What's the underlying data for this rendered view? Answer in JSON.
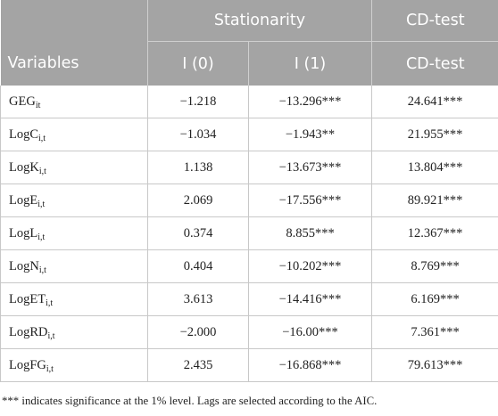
{
  "header": {
    "group_stationarity": "Stationarity",
    "group_cd": "CD-test",
    "col_variables": "Variables",
    "col_i0": "I (0)",
    "col_i1": "I (1)",
    "col_cd": "CD-test"
  },
  "rows": [
    {
      "var": "GEG",
      "sub": "it",
      "i0": "−1.218",
      "i1": "−13.296***",
      "cd": "24.641***"
    },
    {
      "var": "LogC",
      "sub": "i,t",
      "i0": "−1.034",
      "i1": "−1.943**",
      "cd": "21.955***"
    },
    {
      "var": "LogK",
      "sub": "i,t",
      "i0": "1.138",
      "i1": "−13.673***",
      "cd": "13.804***"
    },
    {
      "var": "LogE",
      "sub": "i,t",
      "i0": "2.069",
      "i1": "−17.556***",
      "cd": "89.921***"
    },
    {
      "var": "LogL",
      "sub": "i,t",
      "i0": "0.374",
      "i1": "8.855***",
      "cd": "12.367***"
    },
    {
      "var": "LogN",
      "sub": "i,t",
      "i0": "0.404",
      "i1": "−10.202***",
      "cd": "8.769***"
    },
    {
      "var": "LogET",
      "sub": "i,t",
      "i0": "3.613",
      "i1": "−14.416***",
      "cd": "6.169***"
    },
    {
      "var": "LogRD",
      "sub": "i,t",
      "i0": "−2.000",
      "i1": "−16.00***",
      "cd": "7.361***"
    },
    {
      "var": "LogFG",
      "sub": "i,t",
      "i0": "2.435",
      "i1": "−16.868***",
      "cd": "79.613***"
    }
  ],
  "note": "*** indicates significance at the 1% level. Lags are selected according to the AIC."
}
